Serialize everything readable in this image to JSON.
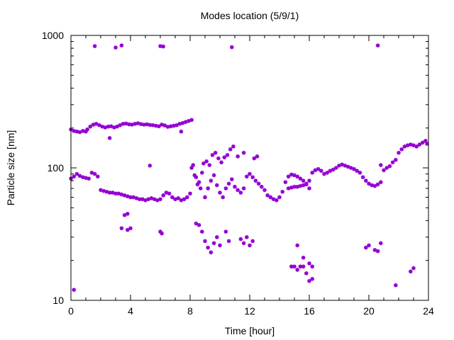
{
  "chart_data": {
    "type": "scatter",
    "title": "Modes location (5/9/1)",
    "xlabel": "Time [hour]",
    "ylabel": "Particle size [nm]",
    "xlim": [
      0,
      24
    ],
    "ylim": [
      10,
      1000
    ],
    "yscale": "log",
    "x_ticks": [
      {
        "value": 0,
        "label": "0"
      },
      {
        "value": 4,
        "label": "4"
      },
      {
        "value": 8,
        "label": "8"
      },
      {
        "value": 12,
        "label": "12"
      },
      {
        "value": 16,
        "label": "16"
      },
      {
        "value": 20,
        "label": "20"
      },
      {
        "value": 24,
        "label": "24"
      }
    ],
    "y_ticks": [
      {
        "value": 10,
        "label": "10"
      },
      {
        "value": 100,
        "label": "100"
      },
      {
        "value": 1000,
        "label": "1000"
      }
    ],
    "grid": false,
    "legend": "none",
    "marker_color": "#9400d3",
    "series": [
      {
        "points": [
          [
            0.0,
            195
          ],
          [
            0.2,
            190
          ],
          [
            0.4,
            188
          ],
          [
            0.6,
            186
          ],
          [
            0.8,
            190
          ],
          [
            1.0,
            188
          ],
          [
            1.1,
            195
          ],
          [
            1.3,
            205
          ],
          [
            1.5,
            212
          ],
          [
            1.7,
            215
          ],
          [
            1.9,
            210
          ],
          [
            2.1,
            205
          ],
          [
            2.3,
            202
          ],
          [
            2.5,
            205
          ],
          [
            2.7,
            206
          ],
          [
            2.9,
            202
          ],
          [
            3.1,
            205
          ],
          [
            3.3,
            210
          ],
          [
            3.5,
            215
          ],
          [
            3.7,
            216
          ],
          [
            3.9,
            213
          ],
          [
            4.1,
            212
          ],
          [
            4.3,
            215
          ],
          [
            4.5,
            217
          ],
          [
            4.7,
            214
          ],
          [
            4.9,
            212
          ],
          [
            5.1,
            213
          ],
          [
            5.3,
            211
          ],
          [
            5.5,
            210
          ],
          [
            5.7,
            208
          ],
          [
            5.9,
            206
          ],
          [
            6.1,
            212
          ],
          [
            6.3,
            209
          ],
          [
            6.5,
            204
          ],
          [
            6.7,
            206
          ],
          [
            6.9,
            208
          ],
          [
            7.1,
            210
          ],
          [
            7.3,
            215
          ],
          [
            7.5,
            218
          ],
          [
            7.7,
            222
          ],
          [
            7.9,
            226
          ],
          [
            8.1,
            230
          ],
          [
            2.6,
            168
          ],
          [
            7.4,
            188
          ],
          [
            0.0,
            83
          ],
          [
            0.2,
            86
          ],
          [
            0.4,
            90
          ],
          [
            0.6,
            87
          ],
          [
            0.8,
            85
          ],
          [
            1.0,
            84
          ],
          [
            1.2,
            83
          ],
          [
            1.4,
            92
          ],
          [
            1.6,
            90
          ],
          [
            1.8,
            86
          ],
          [
            2.0,
            68
          ],
          [
            2.2,
            67
          ],
          [
            2.4,
            66
          ],
          [
            2.6,
            65
          ],
          [
            2.8,
            65
          ],
          [
            3.0,
            64
          ],
          [
            3.2,
            64
          ],
          [
            3.4,
            63
          ],
          [
            3.6,
            62
          ],
          [
            3.8,
            61
          ],
          [
            4.0,
            60
          ],
          [
            4.2,
            60
          ],
          [
            4.4,
            59
          ],
          [
            4.6,
            58
          ],
          [
            4.8,
            58
          ],
          [
            5.0,
            57
          ],
          [
            5.2,
            58
          ],
          [
            5.4,
            59
          ],
          [
            5.6,
            58
          ],
          [
            5.8,
            57
          ],
          [
            6.0,
            58
          ],
          [
            6.2,
            62
          ],
          [
            6.4,
            65
          ],
          [
            6.6,
            64
          ],
          [
            6.8,
            60
          ],
          [
            7.0,
            58
          ],
          [
            7.2,
            59
          ],
          [
            7.4,
            57
          ],
          [
            7.6,
            58
          ],
          [
            7.8,
            60
          ],
          [
            8.0,
            64
          ],
          [
            5.3,
            104
          ],
          [
            8.1,
            100
          ],
          [
            8.3,
            88
          ],
          [
            8.5,
            75
          ],
          [
            8.7,
            70
          ],
          [
            8.9,
            108
          ],
          [
            9.1,
            112
          ],
          [
            9.3,
            105
          ],
          [
            9.5,
            125
          ],
          [
            9.7,
            130
          ],
          [
            9.9,
            118
          ],
          [
            10.1,
            110
          ],
          [
            10.3,
            120
          ],
          [
            10.5,
            125
          ],
          [
            10.7,
            138
          ],
          [
            10.9,
            145
          ],
          [
            8.2,
            105
          ],
          [
            8.4,
            85
          ],
          [
            8.6,
            78
          ],
          [
            8.8,
            92
          ],
          [
            9.0,
            60
          ],
          [
            9.2,
            70
          ],
          [
            9.4,
            80
          ],
          [
            9.6,
            88
          ],
          [
            9.8,
            74
          ],
          [
            10.0,
            65
          ],
          [
            10.2,
            60
          ],
          [
            10.4,
            70
          ],
          [
            10.6,
            76
          ],
          [
            10.8,
            82
          ],
          [
            11.0,
            72
          ],
          [
            11.2,
            68
          ],
          [
            11.4,
            65
          ],
          [
            11.6,
            70
          ],
          [
            11.8,
            86
          ],
          [
            12.0,
            90
          ],
          [
            12.2,
            85
          ],
          [
            12.4,
            80
          ],
          [
            12.6,
            76
          ],
          [
            12.8,
            72
          ],
          [
            13.0,
            68
          ],
          [
            13.2,
            62
          ],
          [
            13.4,
            60
          ],
          [
            13.6,
            58
          ],
          [
            13.8,
            57
          ],
          [
            14.0,
            60
          ],
          [
            14.2,
            66
          ],
          [
            14.4,
            78
          ],
          [
            14.6,
            86
          ],
          [
            14.8,
            89
          ],
          [
            15.0,
            88
          ],
          [
            15.2,
            86
          ],
          [
            15.4,
            83
          ],
          [
            15.6,
            80
          ],
          [
            15.8,
            76
          ],
          [
            16.0,
            70
          ],
          [
            12.3,
            118
          ],
          [
            12.5,
            122
          ],
          [
            11.2,
            122
          ],
          [
            11.6,
            130
          ],
          [
            14.6,
            70
          ],
          [
            14.8,
            71
          ],
          [
            15.0,
            72
          ],
          [
            15.2,
            72
          ],
          [
            15.4,
            73
          ],
          [
            15.6,
            74
          ],
          [
            15.8,
            75
          ],
          [
            16.0,
            80
          ],
          [
            16.2,
            92
          ],
          [
            16.4,
            96
          ],
          [
            16.6,
            98
          ],
          [
            16.8,
            95
          ],
          [
            17.0,
            90
          ],
          [
            17.2,
            92
          ],
          [
            17.4,
            95
          ],
          [
            17.6,
            97
          ],
          [
            17.8,
            100
          ],
          [
            18.0,
            104
          ],
          [
            18.2,
            106
          ],
          [
            18.4,
            104
          ],
          [
            18.6,
            102
          ],
          [
            18.8,
            100
          ],
          [
            19.0,
            98
          ],
          [
            19.2,
            95
          ],
          [
            19.4,
            92
          ],
          [
            19.6,
            85
          ],
          [
            19.8,
            80
          ],
          [
            20.0,
            76
          ],
          [
            20.2,
            74
          ],
          [
            20.4,
            73
          ],
          [
            20.6,
            75
          ],
          [
            20.8,
            78
          ],
          [
            21.0,
            96
          ],
          [
            21.2,
            100
          ],
          [
            21.4,
            103
          ],
          [
            21.6,
            110
          ],
          [
            21.8,
            115
          ],
          [
            22.0,
            130
          ],
          [
            22.2,
            138
          ],
          [
            22.4,
            145
          ],
          [
            22.6,
            148
          ],
          [
            22.8,
            150
          ],
          [
            23.0,
            148
          ],
          [
            23.2,
            145
          ],
          [
            23.4,
            150
          ],
          [
            23.6,
            155
          ],
          [
            23.8,
            160
          ],
          [
            23.9,
            152
          ],
          [
            20.8,
            105
          ],
          [
            8.4,
            38
          ],
          [
            8.6,
            37
          ],
          [
            8.8,
            33
          ],
          [
            9.0,
            28
          ],
          [
            9.2,
            25
          ],
          [
            9.4,
            23
          ],
          [
            9.6,
            27
          ],
          [
            9.8,
            30
          ],
          [
            10.0,
            26
          ],
          [
            10.4,
            33
          ],
          [
            10.6,
            28
          ],
          [
            3.6,
            44
          ],
          [
            3.8,
            45
          ],
          [
            3.4,
            35
          ],
          [
            3.8,
            34
          ],
          [
            4.0,
            35
          ],
          [
            6.0,
            33
          ],
          [
            6.1,
            32
          ],
          [
            11.4,
            29
          ],
          [
            11.6,
            27
          ],
          [
            11.8,
            30
          ],
          [
            12.0,
            26
          ],
          [
            12.2,
            28
          ],
          [
            14.8,
            18
          ],
          [
            15.0,
            18
          ],
          [
            15.2,
            17
          ],
          [
            15.4,
            18
          ],
          [
            15.6,
            18
          ],
          [
            15.8,
            16
          ],
          [
            16.0,
            14
          ],
          [
            16.2,
            18
          ],
          [
            15.2,
            26
          ],
          [
            15.6,
            21
          ],
          [
            16.0,
            19
          ],
          [
            16.2,
            14.5
          ],
          [
            19.8,
            25
          ],
          [
            20.0,
            26
          ],
          [
            20.4,
            24
          ],
          [
            20.6,
            23.5
          ],
          [
            20.8,
            27
          ],
          [
            21.8,
            13
          ],
          [
            22.8,
            16.5
          ],
          [
            23.0,
            17.5
          ],
          [
            0.2,
            12
          ],
          [
            1.6,
            830
          ],
          [
            3.0,
            810
          ],
          [
            3.4,
            840
          ],
          [
            6.0,
            830
          ],
          [
            6.2,
            825
          ],
          [
            10.8,
            815
          ],
          [
            20.6,
            840
          ]
        ]
      }
    ]
  }
}
